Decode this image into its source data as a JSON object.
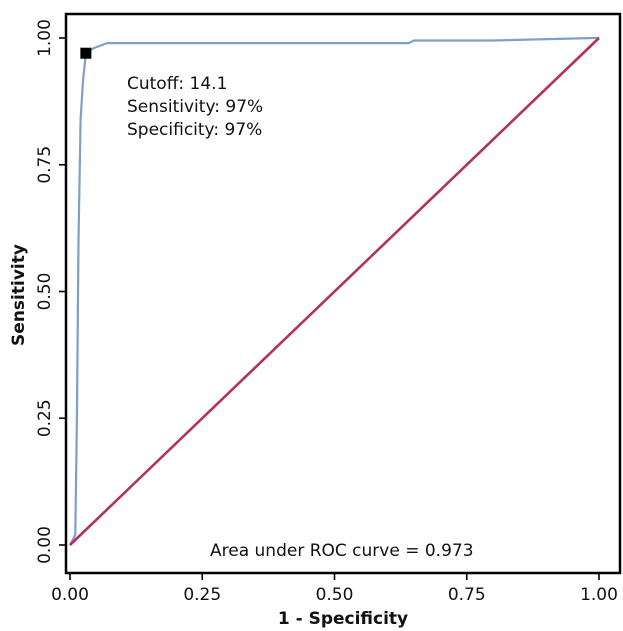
{
  "chart_data": {
    "type": "line",
    "title": "",
    "xlabel": "1 - Specificity",
    "ylabel": "Sensitivity",
    "xlim": [
      0,
      1
    ],
    "ylim": [
      0,
      1
    ],
    "x_ticks": [
      "0.00",
      "0.25",
      "0.50",
      "0.75",
      "1.00"
    ],
    "y_ticks": [
      "0.00",
      "0.25",
      "0.50",
      "0.75",
      "1.00"
    ],
    "grid": false,
    "series": [
      {
        "color": "#7f9fc8",
        "x": [
          0.0,
          0.01,
          0.013,
          0.016,
          0.02,
          0.025,
          0.03,
          0.045,
          0.07,
          0.3,
          0.64,
          0.65,
          0.8,
          0.99,
          1.0
        ],
        "y": [
          0.0,
          0.02,
          0.25,
          0.6,
          0.84,
          0.92,
          0.97,
          0.98,
          0.99,
          0.99,
          0.99,
          0.995,
          0.995,
          1.0,
          1.0
        ]
      },
      {
        "color": "#b2335a",
        "x": [
          0,
          1
        ],
        "y": [
          0,
          1
        ]
      }
    ],
    "marker": {
      "x": 0.03,
      "y": 0.97,
      "shape": "square",
      "color": "#000000"
    },
    "annotations": {
      "cutoff": "Cutoff: 14.1",
      "sensitivity": "Sensitivity: 97%",
      "specificity": "Specificity: 97%",
      "auc": "Area under ROC curve = 0.973"
    }
  }
}
